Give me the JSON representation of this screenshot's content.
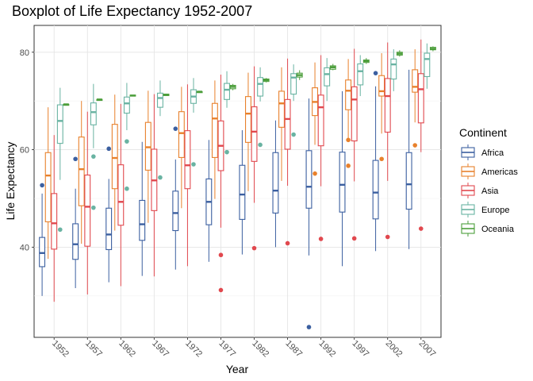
{
  "chart_data": {
    "type": "boxplot",
    "title": "Boxplot of Life Expectancy 1952-2007",
    "xlabel": "Year",
    "ylabel": "Life Expectancy",
    "ylim": [
      21.5,
      85.5
    ],
    "yticks": [
      40,
      60,
      80
    ],
    "categories": [
      "1952",
      "1957",
      "1962",
      "1967",
      "1972",
      "1977",
      "1982",
      "1987",
      "1992",
      "1997",
      "2002",
      "2007"
    ],
    "grid": true,
    "legend": {
      "title": "Continent",
      "position": "right"
    },
    "series": [
      {
        "name": "Africa",
        "color": "#3b5fa0",
        "boxes": [
          {
            "wlo": 30.0,
            "q1": 36.0,
            "med": 38.8,
            "q3": 42.0,
            "whi": 51.0,
            "out": [
              52.7
            ]
          },
          {
            "wlo": 31.6,
            "q1": 37.5,
            "med": 40.6,
            "q3": 44.8,
            "whi": 52.0,
            "out": [
              58.1
            ]
          },
          {
            "wlo": 32.8,
            "q1": 39.5,
            "med": 42.6,
            "q3": 48.0,
            "whi": 54.0,
            "out": [
              60.2
            ]
          },
          {
            "wlo": 34.1,
            "q1": 41.4,
            "med": 44.7,
            "q3": 49.6,
            "whi": 61.6,
            "out": []
          },
          {
            "wlo": 35.4,
            "q1": 43.4,
            "med": 47.0,
            "q3": 51.5,
            "whi": 58.0,
            "out": [
              64.3
            ]
          },
          {
            "wlo": 37.0,
            "q1": 44.6,
            "med": 49.3,
            "q3": 54.0,
            "whi": 62.0,
            "out": []
          },
          {
            "wlo": 38.5,
            "q1": 45.7,
            "med": 50.8,
            "q3": 56.8,
            "whi": 64.0,
            "out": []
          },
          {
            "wlo": 40.0,
            "q1": 47.0,
            "med": 51.6,
            "q3": 59.4,
            "whi": 66.0,
            "out": []
          },
          {
            "wlo": 38.3,
            "q1": 48.0,
            "med": 52.4,
            "q3": 59.8,
            "whi": 70.5,
            "out": [
              23.6
            ]
          },
          {
            "wlo": 36.1,
            "q1": 47.2,
            "med": 52.8,
            "q3": 59.5,
            "whi": 72.0,
            "out": []
          },
          {
            "wlo": 39.2,
            "q1": 45.8,
            "med": 51.2,
            "q3": 57.8,
            "whi": 73.0,
            "out": [
              75.7
            ]
          },
          {
            "wlo": 39.6,
            "q1": 47.8,
            "med": 52.9,
            "q3": 59.4,
            "whi": 76.4,
            "out": []
          }
        ]
      },
      {
        "name": "Americas",
        "color": "#e8812c",
        "boxes": [
          {
            "wlo": 37.6,
            "q1": 45.2,
            "med": 54.7,
            "q3": 59.4,
            "whi": 68.7,
            "out": []
          },
          {
            "wlo": 40.7,
            "q1": 48.5,
            "med": 56.0,
            "q3": 62.6,
            "whi": 70.0,
            "out": []
          },
          {
            "wlo": 43.4,
            "q1": 52.0,
            "med": 58.3,
            "q3": 65.2,
            "whi": 71.3,
            "out": []
          },
          {
            "wlo": 45.0,
            "q1": 55.8,
            "med": 60.5,
            "q3": 65.6,
            "whi": 72.1,
            "out": []
          },
          {
            "wlo": 48.0,
            "q1": 58.4,
            "med": 63.4,
            "q3": 67.8,
            "whi": 72.9,
            "out": []
          },
          {
            "wlo": 49.9,
            "q1": 58.4,
            "med": 66.4,
            "q3": 69.5,
            "whi": 74.2,
            "out": []
          },
          {
            "wlo": 51.5,
            "q1": 61.5,
            "med": 67.4,
            "q3": 70.9,
            "whi": 75.8,
            "out": []
          },
          {
            "wlo": 53.6,
            "q1": 64.6,
            "med": 69.5,
            "q3": 72.0,
            "whi": 76.9,
            "out": []
          },
          {
            "wlo": 61.0,
            "q1": 67.0,
            "med": 69.8,
            "q3": 72.7,
            "whi": 77.9,
            "out": [
              55.1
            ]
          },
          {
            "wlo": 62.0,
            "q1": 68.2,
            "med": 72.1,
            "q3": 74.3,
            "whi": 78.6,
            "out": [
              56.7,
              62.0
            ]
          },
          {
            "wlo": 63.3,
            "q1": 71.0,
            "med": 72.0,
            "q3": 75.2,
            "whi": 79.8,
            "out": [
              58.1
            ]
          },
          {
            "wlo": 65.6,
            "q1": 71.8,
            "med": 72.9,
            "q3": 76.4,
            "whi": 80.6,
            "out": [
              60.9
            ]
          }
        ]
      },
      {
        "name": "Asia",
        "color": "#e1484e",
        "boxes": [
          {
            "wlo": 28.8,
            "q1": 39.6,
            "med": 44.9,
            "q3": 51.0,
            "whi": 63.0,
            "out": []
          },
          {
            "wlo": 30.3,
            "q1": 40.2,
            "med": 48.3,
            "q3": 54.8,
            "whi": 67.8,
            "out": []
          },
          {
            "wlo": 32.0,
            "q1": 44.5,
            "med": 49.3,
            "q3": 56.9,
            "whi": 69.4,
            "out": []
          },
          {
            "wlo": 34.0,
            "q1": 47.5,
            "med": 53.7,
            "q3": 60.1,
            "whi": 71.4,
            "out": []
          },
          {
            "wlo": 36.1,
            "q1": 52.0,
            "med": 56.8,
            "q3": 63.9,
            "whi": 73.4,
            "out": []
          },
          {
            "wlo": 44.0,
            "q1": 55.7,
            "med": 60.8,
            "q3": 65.9,
            "whi": 75.4,
            "out": [
              31.2,
              38.4
            ]
          },
          {
            "wlo": 49.1,
            "q1": 57.6,
            "med": 63.7,
            "q3": 68.8,
            "whi": 77.1,
            "out": [
              39.8
            ]
          },
          {
            "wlo": 52.6,
            "q1": 60.1,
            "med": 66.3,
            "q3": 70.3,
            "whi": 78.7,
            "out": [
              40.8
            ]
          },
          {
            "wlo": 52.5,
            "q1": 60.8,
            "med": 68.7,
            "q3": 71.2,
            "whi": 79.4,
            "out": [
              41.7
            ]
          },
          {
            "wlo": 53.5,
            "q1": 61.8,
            "med": 70.3,
            "q3": 72.9,
            "whi": 80.7,
            "out": [
              41.8
            ]
          },
          {
            "wlo": 53.6,
            "q1": 63.6,
            "med": 71.0,
            "q3": 74.6,
            "whi": 82.0,
            "out": [
              42.1
            ]
          },
          {
            "wlo": 59.5,
            "q1": 65.5,
            "med": 72.4,
            "q3": 75.6,
            "whi": 82.6,
            "out": [
              43.8
            ]
          }
        ]
      },
      {
        "name": "Europe",
        "color": "#69b3a2",
        "boxes": [
          {
            "wlo": 53.8,
            "q1": 61.3,
            "med": 65.9,
            "q3": 69.2,
            "whi": 72.7,
            "out": [
              43.6
            ]
          },
          {
            "wlo": 60.3,
            "q1": 65.1,
            "med": 67.7,
            "q3": 69.6,
            "whi": 73.5,
            "out": [
              48.1,
              58.6
            ]
          },
          {
            "wlo": 64.0,
            "q1": 67.5,
            "med": 69.5,
            "q3": 70.8,
            "whi": 73.7,
            "out": [
              52.0,
              61.7
            ]
          },
          {
            "wlo": 66.9,
            "q1": 68.7,
            "med": 70.6,
            "q3": 71.6,
            "whi": 74.2,
            "out": [
              54.3
            ]
          },
          {
            "wlo": 67.6,
            "q1": 69.5,
            "med": 70.9,
            "q3": 72.3,
            "whi": 74.7,
            "out": [
              57.0
            ]
          },
          {
            "wlo": 68.6,
            "q1": 70.3,
            "med": 72.3,
            "q3": 73.6,
            "whi": 76.1,
            "out": [
              59.5
            ]
          },
          {
            "wlo": 69.9,
            "q1": 71.0,
            "med": 73.5,
            "q3": 74.8,
            "whi": 76.9,
            "out": [
              61.0
            ]
          },
          {
            "wlo": 70.0,
            "q1": 71.4,
            "med": 74.8,
            "q3": 75.6,
            "whi": 77.5,
            "out": [
              63.1
            ]
          },
          {
            "wlo": 70.0,
            "q1": 73.1,
            "med": 75.5,
            "q3": 76.8,
            "whi": 78.8,
            "out": []
          },
          {
            "wlo": 71.0,
            "q1": 73.3,
            "med": 76.1,
            "q3": 77.6,
            "whi": 79.4,
            "out": []
          },
          {
            "wlo": 72.0,
            "q1": 74.5,
            "med": 77.5,
            "q3": 78.6,
            "whi": 80.6,
            "out": []
          },
          {
            "wlo": 72.5,
            "q1": 75.0,
            "med": 78.6,
            "q3": 79.8,
            "whi": 81.8,
            "out": []
          }
        ]
      },
      {
        "name": "Oceania",
        "color": "#4c9e3b",
        "boxes": [
          {
            "wlo": 69.1,
            "q1": 69.2,
            "med": 69.3,
            "q3": 69.3,
            "whi": 69.4,
            "out": []
          },
          {
            "wlo": 70.3,
            "q1": 70.3,
            "med": 70.3,
            "q3": 70.3,
            "whi": 70.3,
            "out": []
          },
          {
            "wlo": 71.0,
            "q1": 71.0,
            "med": 71.1,
            "q3": 71.2,
            "whi": 71.2,
            "out": []
          },
          {
            "wlo": 71.1,
            "q1": 71.1,
            "med": 71.3,
            "q3": 71.4,
            "whi": 71.5,
            "out": []
          },
          {
            "wlo": 71.9,
            "q1": 71.9,
            "med": 71.9,
            "q3": 71.9,
            "whi": 72.0,
            "out": []
          },
          {
            "wlo": 72.2,
            "q1": 72.5,
            "med": 72.9,
            "q3": 73.2,
            "whi": 73.5,
            "out": []
          },
          {
            "wlo": 73.8,
            "q1": 74.0,
            "med": 74.3,
            "q3": 74.5,
            "whi": 74.7,
            "out": []
          },
          {
            "wlo": 74.3,
            "q1": 74.9,
            "med": 75.3,
            "q3": 75.7,
            "whi": 76.3,
            "out": []
          },
          {
            "wlo": 76.3,
            "q1": 76.5,
            "med": 76.9,
            "q3": 77.2,
            "whi": 77.6,
            "out": []
          },
          {
            "wlo": 77.6,
            "q1": 77.9,
            "med": 78.2,
            "q3": 78.4,
            "whi": 78.8,
            "out": []
          },
          {
            "wlo": 79.1,
            "q1": 79.4,
            "med": 79.7,
            "q3": 80.0,
            "whi": 80.4,
            "out": []
          },
          {
            "wlo": 80.2,
            "q1": 80.5,
            "med": 80.7,
            "q3": 81.0,
            "whi": 81.2,
            "out": []
          }
        ]
      }
    ]
  }
}
